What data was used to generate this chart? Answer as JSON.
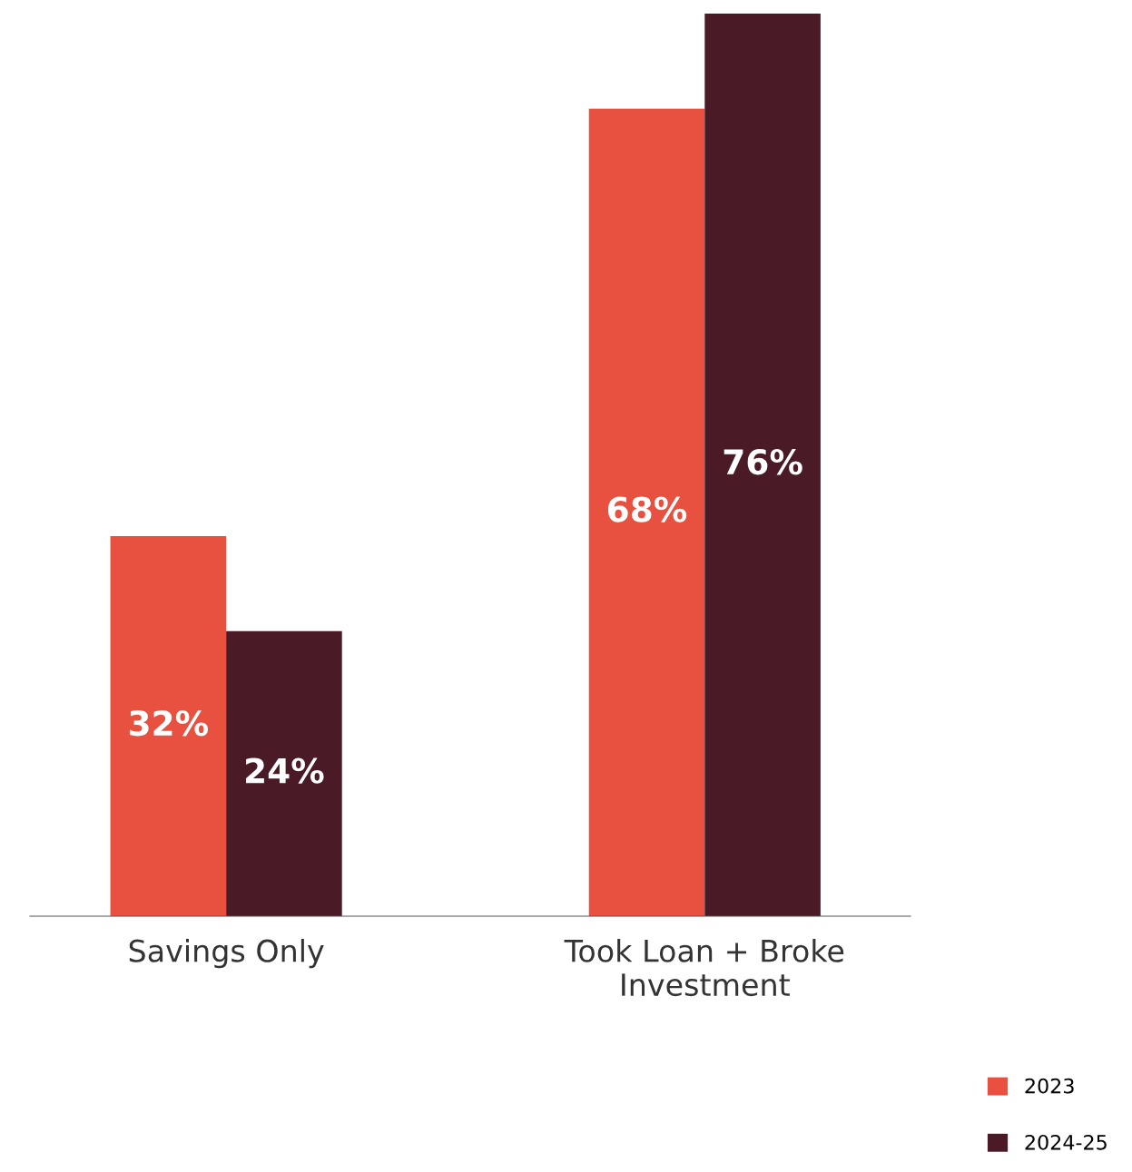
{
  "chart_data": {
    "type": "bar",
    "categories": [
      "Savings Only",
      "Took Loan + Broke Investment"
    ],
    "series": [
      {
        "name": "2023",
        "color": "#e8513f",
        "values": [
          32,
          68
        ],
        "value_labels": [
          "32%",
          "68%"
        ]
      },
      {
        "name": "2024-25",
        "color": "#4a1a26",
        "values": [
          24,
          76
        ],
        "value_labels": [
          "24%",
          "76%"
        ]
      }
    ],
    "legend": "bottom right",
    "grid": false
  }
}
